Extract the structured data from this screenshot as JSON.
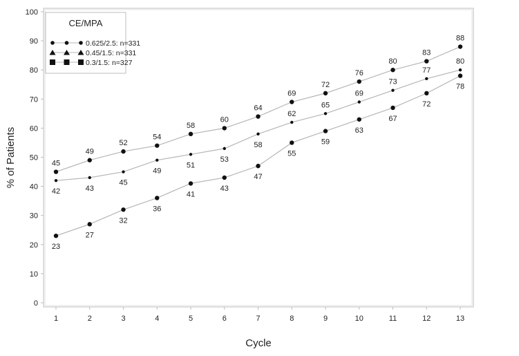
{
  "chart_data": {
    "type": "line",
    "title": "",
    "xlabel": "Cycle",
    "ylabel": "% of Patients",
    "ylim": [
      0,
      100
    ],
    "yticks": [
      0,
      10,
      20,
      30,
      40,
      50,
      60,
      70,
      80,
      90,
      100
    ],
    "x": [
      1,
      2,
      3,
      4,
      5,
      6,
      7,
      8,
      9,
      10,
      11,
      12,
      13
    ],
    "legend": {
      "title": "CE/MPA",
      "position": "upper-left",
      "entries": [
        {
          "marker": "circle",
          "label": "0.625/2.5:  n=331"
        },
        {
          "marker": "triangle",
          "label": "0.45/1.5:  n=331"
        },
        {
          "marker": "square",
          "label": "0.3/1.5:  n=327"
        }
      ]
    },
    "series": [
      {
        "name": "0.625/2.5: n=331",
        "label_pos": "above",
        "values": [
          45,
          49,
          52,
          54,
          58,
          60,
          64,
          69,
          72,
          76,
          80,
          83,
          88
        ]
      },
      {
        "name": "0.45/1.5: n=331",
        "label_pos": "mixed",
        "values": [
          42,
          43,
          45,
          49,
          51,
          53,
          58,
          62,
          65,
          69,
          73,
          77,
          80
        ]
      },
      {
        "name": "0.3/1.5: n=327",
        "label_pos": "below",
        "values": [
          23,
          27,
          32,
          36,
          41,
          43,
          47,
          55,
          59,
          63,
          67,
          72,
          78
        ]
      }
    ],
    "grid": false
  },
  "colors": {
    "line": "#b5b5b5",
    "frame": "#bdbdbd",
    "marker": "#111111",
    "text": "#222222"
  }
}
